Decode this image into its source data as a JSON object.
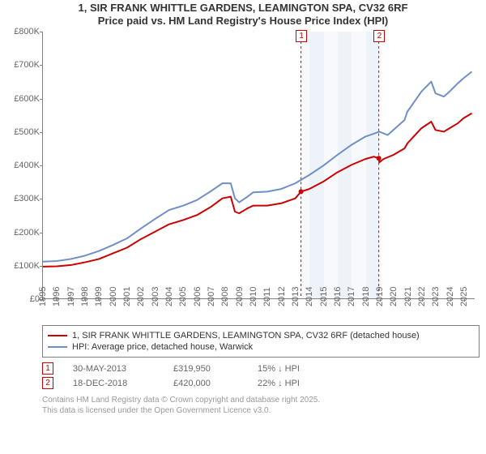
{
  "title_line1": "1, SIR FRANK WHITTLE GARDENS, LEAMINGTON SPA, CV32 6RF",
  "title_line2": "Price paid vs. HM Land Registry's House Price Index (HPI)",
  "title_fontsize": 13,
  "chart": {
    "type": "line",
    "background_color": "#ffffff",
    "axis_color": "#808080",
    "tick_font_color": "#666666",
    "tick_fontsize": 11,
    "x_range": [
      1995,
      2025.8
    ],
    "y_range": [
      0,
      800000
    ],
    "y_ticks": [
      {
        "v": 0,
        "label": "£0"
      },
      {
        "v": 100000,
        "label": "£100K"
      },
      {
        "v": 200000,
        "label": "£200K"
      },
      {
        "v": 300000,
        "label": "£300K"
      },
      {
        "v": 400000,
        "label": "£400K"
      },
      {
        "v": 500000,
        "label": "£500K"
      },
      {
        "v": 600000,
        "label": "£600K"
      },
      {
        "v": 700000,
        "label": "£700K"
      },
      {
        "v": 800000,
        "label": "£800K"
      }
    ],
    "x_ticks": [
      1995,
      1996,
      1997,
      1998,
      1999,
      2000,
      2001,
      2002,
      2003,
      2004,
      2005,
      2006,
      2007,
      2008,
      2009,
      2010,
      2011,
      2012,
      2013,
      2014,
      2015,
      2016,
      2017,
      2018,
      2019,
      2020,
      2021,
      2022,
      2023,
      2024,
      2025
    ],
    "shade_bands": [
      {
        "from": 2013.41,
        "to": 2014.0,
        "color": "#f7f9fc"
      },
      {
        "from": 2014.0,
        "to": 2015.0,
        "color": "#eef3fa"
      },
      {
        "from": 2015.0,
        "to": 2016.0,
        "color": "#f7f9fc"
      },
      {
        "from": 2016.0,
        "to": 2017.0,
        "color": "#eef3fa"
      },
      {
        "from": 2017.0,
        "to": 2018.0,
        "color": "#f7f9fc"
      },
      {
        "from": 2018.0,
        "to": 2018.96,
        "color": "#eef3fa"
      }
    ],
    "series": [
      {
        "name": "property",
        "label": "1, SIR FRANK WHITTLE GARDENS, LEAMINGTON SPA, CV32 6RF (detached house)",
        "color": "#cc0000",
        "line_width": 2,
        "data": [
          [
            1995,
            95000
          ],
          [
            1996,
            96000
          ],
          [
            1997,
            100000
          ],
          [
            1998,
            108000
          ],
          [
            1999,
            118000
          ],
          [
            2000,
            135000
          ],
          [
            2001,
            152000
          ],
          [
            2002,
            178000
          ],
          [
            2003,
            200000
          ],
          [
            2004,
            222000
          ],
          [
            2005,
            235000
          ],
          [
            2006,
            250000
          ],
          [
            2007,
            275000
          ],
          [
            2007.8,
            300000
          ],
          [
            2008.4,
            305000
          ],
          [
            2008.7,
            260000
          ],
          [
            2009,
            255000
          ],
          [
            2009.6,
            270000
          ],
          [
            2010,
            278000
          ],
          [
            2011,
            278000
          ],
          [
            2012,
            285000
          ],
          [
            2013,
            300000
          ],
          [
            2013.41,
            319950
          ],
          [
            2014,
            328000
          ],
          [
            2015,
            350000
          ],
          [
            2016,
            378000
          ],
          [
            2017,
            400000
          ],
          [
            2018,
            418000
          ],
          [
            2018.6,
            425000
          ],
          [
            2018.96,
            420000
          ],
          [
            2019,
            408000
          ],
          [
            2019.3,
            418000
          ],
          [
            2020,
            430000
          ],
          [
            2020.8,
            450000
          ],
          [
            2021,
            465000
          ],
          [
            2022,
            510000
          ],
          [
            2022.7,
            530000
          ],
          [
            2023,
            505000
          ],
          [
            2023.6,
            500000
          ],
          [
            2024,
            510000
          ],
          [
            2024.6,
            525000
          ],
          [
            2025,
            540000
          ],
          [
            2025.6,
            555000
          ]
        ]
      },
      {
        "name": "hpi",
        "label": "HPI: Average price, detached house, Warwick",
        "color": "#6f8fc7",
        "line_width": 2,
        "data": [
          [
            1995,
            110000
          ],
          [
            1996,
            112000
          ],
          [
            1997,
            118000
          ],
          [
            1998,
            128000
          ],
          [
            1999,
            142000
          ],
          [
            2000,
            160000
          ],
          [
            2001,
            180000
          ],
          [
            2002,
            210000
          ],
          [
            2003,
            238000
          ],
          [
            2004,
            265000
          ],
          [
            2005,
            278000
          ],
          [
            2006,
            295000
          ],
          [
            2007,
            322000
          ],
          [
            2007.8,
            345000
          ],
          [
            2008.4,
            345000
          ],
          [
            2008.7,
            300000
          ],
          [
            2009,
            288000
          ],
          [
            2009.6,
            305000
          ],
          [
            2010,
            318000
          ],
          [
            2011,
            320000
          ],
          [
            2012,
            328000
          ],
          [
            2013,
            345000
          ],
          [
            2014,
            370000
          ],
          [
            2015,
            398000
          ],
          [
            2016,
            430000
          ],
          [
            2017,
            460000
          ],
          [
            2018,
            485000
          ],
          [
            2019,
            500000
          ],
          [
            2019.6,
            490000
          ],
          [
            2020,
            505000
          ],
          [
            2020.8,
            535000
          ],
          [
            2021,
            560000
          ],
          [
            2022,
            620000
          ],
          [
            2022.7,
            650000
          ],
          [
            2023,
            615000
          ],
          [
            2023.6,
            605000
          ],
          [
            2024,
            620000
          ],
          [
            2024.6,
            645000
          ],
          [
            2025,
            660000
          ],
          [
            2025.6,
            680000
          ]
        ]
      }
    ],
    "markers": [
      {
        "id": "1",
        "x": 2013.41,
        "y": 319950,
        "color": "#cc0000"
      },
      {
        "id": "2",
        "x": 2018.96,
        "y": 420000,
        "color": "#cc0000"
      }
    ],
    "marker_point_radius": 3
  },
  "legend": {
    "border_color": "#808080",
    "fontsize": 11
  },
  "annotations": [
    {
      "id": "1",
      "date": "30-MAY-2013",
      "price": "£319,950",
      "delta": "15% ↓ HPI",
      "color": "#cc0000"
    },
    {
      "id": "2",
      "date": "18-DEC-2018",
      "price": "£420,000",
      "delta": "22% ↓ HPI",
      "color": "#cc0000"
    }
  ],
  "footer_line1": "Contains HM Land Registry data © Crown copyright and database right 2025.",
  "footer_line2": "This data is licensed under the Open Government Licence v3.0."
}
